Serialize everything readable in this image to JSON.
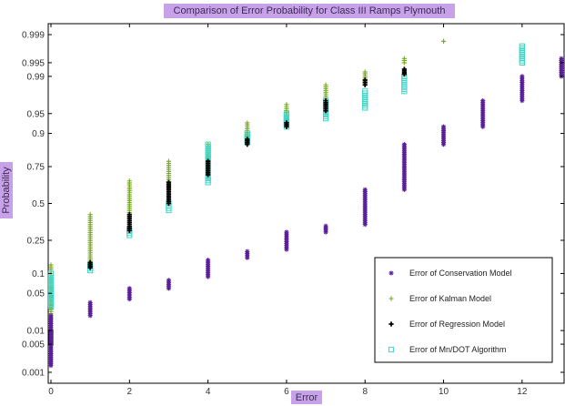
{
  "chart_data": {
    "type": "scatter",
    "title": "Comparison of Error Probability for Class III Ramps Plymouth",
    "xlabel": "Error",
    "ylabel": "Probability",
    "xlim": [
      0,
      13
    ],
    "y_scale": "normal-probability",
    "ylim": [
      0.0005,
      0.9995
    ],
    "x_ticks": [
      "0",
      "2",
      "4",
      "6",
      "8",
      "10",
      "12"
    ],
    "y_ticks": [
      "0.001",
      "0.005",
      "0.01",
      "0.05",
      "0.1",
      "0.25",
      "0.5",
      "0.75",
      "0.9",
      "0.95",
      "0.99",
      "0.995",
      "0.999"
    ],
    "grid": false,
    "legend_position": "bottom-right",
    "series": [
      {
        "name": "Error of Conservation Model",
        "marker": "star",
        "color": "#5a1f9a",
        "points": [
          {
            "x": 0,
            "pmin": 0.0015,
            "pmax": 0.02
          },
          {
            "x": 1,
            "pmin": 0.02,
            "pmax": 0.035
          },
          {
            "x": 2,
            "pmin": 0.04,
            "pmax": 0.06
          },
          {
            "x": 3,
            "pmin": 0.06,
            "pmax": 0.08
          },
          {
            "x": 4,
            "pmin": 0.09,
            "pmax": 0.15
          },
          {
            "x": 5,
            "pmin": 0.16,
            "pmax": 0.19
          },
          {
            "x": 6,
            "pmin": 0.2,
            "pmax": 0.3
          },
          {
            "x": 7,
            "pmin": 0.3,
            "pmax": 0.34
          },
          {
            "x": 8,
            "pmin": 0.35,
            "pmax": 0.6
          },
          {
            "x": 9,
            "pmin": 0.6,
            "pmax": 0.86
          },
          {
            "x": 10,
            "pmin": 0.86,
            "pmax": 0.92
          },
          {
            "x": 11,
            "pmin": 0.92,
            "pmax": 0.97
          },
          {
            "x": 12,
            "pmin": 0.97,
            "pmax": 0.99
          },
          {
            "x": 13,
            "pmin": 0.99,
            "pmax": 0.996
          }
        ]
      },
      {
        "name": "Error of Kalman Model",
        "marker": "plus",
        "color": "#7aa825",
        "points": [
          {
            "x": 0,
            "pmin": 0.02,
            "pmax": 0.13
          },
          {
            "x": 1,
            "pmin": 0.13,
            "pmax": 0.42
          },
          {
            "x": 2,
            "pmin": 0.42,
            "pmax": 0.66
          },
          {
            "x": 3,
            "pmin": 0.6,
            "pmax": 0.78
          },
          {
            "x": 4,
            "pmin": 0.78,
            "pmax": 0.86
          },
          {
            "x": 5,
            "pmin": 0.86,
            "pmax": 0.93
          },
          {
            "x": 6,
            "pmin": 0.93,
            "pmax": 0.965
          },
          {
            "x": 7,
            "pmin": 0.965,
            "pmax": 0.985
          },
          {
            "x": 8,
            "pmin": 0.985,
            "pmax": 0.992
          },
          {
            "x": 9,
            "pmin": 0.995,
            "pmax": 0.996
          },
          {
            "x": 10,
            "pmin": 0.9985,
            "pmax": 0.9985
          }
        ]
      },
      {
        "name": "Error of Regression Model",
        "marker": "plus-bold",
        "color": "#000000",
        "points": [
          {
            "x": 0,
            "pmin": 0.005,
            "pmax": 0.01
          },
          {
            "x": 1,
            "pmin": 0.12,
            "pmax": 0.14
          },
          {
            "x": 2,
            "pmin": 0.31,
            "pmax": 0.42
          },
          {
            "x": 3,
            "pmin": 0.5,
            "pmax": 0.65
          },
          {
            "x": 4,
            "pmin": 0.7,
            "pmax": 0.78
          },
          {
            "x": 5,
            "pmin": 0.86,
            "pmax": 0.88
          },
          {
            "x": 6,
            "pmin": 0.92,
            "pmax": 0.93
          },
          {
            "x": 7,
            "pmin": 0.955,
            "pmax": 0.97
          },
          {
            "x": 8,
            "pmin": 0.985,
            "pmax": 0.988
          },
          {
            "x": 9,
            "pmin": 0.991,
            "pmax": 0.993
          }
        ]
      },
      {
        "name": "Error of Mn/DOT Algorithm",
        "marker": "square",
        "color": "#3dd6c8",
        "points": [
          {
            "x": 0,
            "pmin": 0.03,
            "pmax": 0.1
          },
          {
            "x": 1,
            "pmin": 0.11,
            "pmax": 0.13
          },
          {
            "x": 2,
            "pmin": 0.28,
            "pmax": 0.32
          },
          {
            "x": 3,
            "pmin": 0.45,
            "pmax": 0.5
          },
          {
            "x": 4,
            "pmin": 0.65,
            "pmax": 0.86
          },
          {
            "x": 5,
            "pmin": 0.87,
            "pmax": 0.9
          },
          {
            "x": 6,
            "pmin": 0.92,
            "pmax": 0.95
          },
          {
            "x": 7,
            "pmin": 0.94,
            "pmax": 0.97
          },
          {
            "x": 8,
            "pmin": 0.96,
            "pmax": 0.98
          },
          {
            "x": 9,
            "pmin": 0.98,
            "pmax": 0.99
          },
          {
            "x": 12,
            "pmin": 0.995,
            "pmax": 0.998
          }
        ]
      }
    ]
  }
}
